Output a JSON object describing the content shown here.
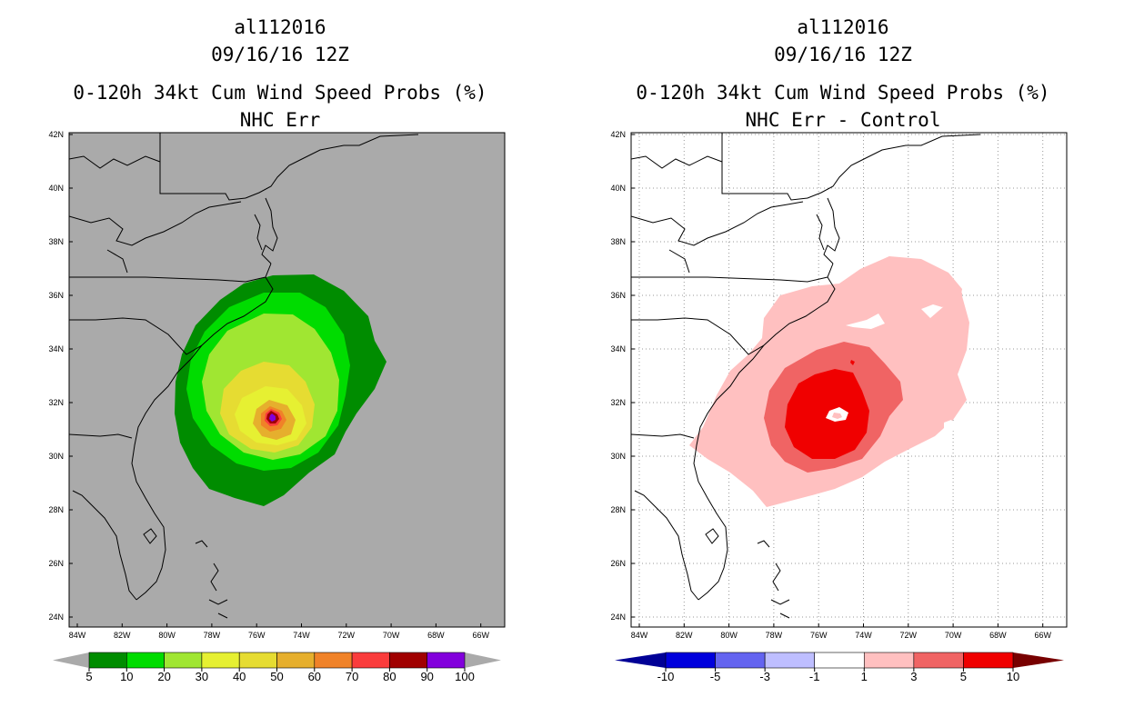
{
  "left_panel": {
    "title_line1": "al112016",
    "title_line2": "09/16/16 12Z",
    "title_line3": "0-120h 34kt Cum Wind Speed Probs (%)",
    "title_line4": "NHC Err",
    "background": "#aaaaaa",
    "colorbar": {
      "colors": [
        "#008c00",
        "#00dc00",
        "#a0e632",
        "#e6f032",
        "#e6dc32",
        "#e6af2d",
        "#f08228",
        "#fa3c3c",
        "#a00000",
        "#8200dc"
      ],
      "labels": [
        "5",
        "10",
        "20",
        "30",
        "40",
        "50",
        "60",
        "70",
        "80",
        "90",
        "100"
      ]
    }
  },
  "right_panel": {
    "title_line1": "al112016",
    "title_line2": "09/16/16 12Z",
    "title_line3": "0-120h 34kt Cum Wind Speed Probs (%)",
    "title_line4": "NHC Err - Control",
    "background": "#ffffff",
    "colorbar": {
      "colors": [
        "#0000dc",
        "#6464f0",
        "#bebeff",
        "#ffffff",
        "#ffc0c0",
        "#f06464",
        "#f00000"
      ],
      "end_left": "#000096",
      "end_right": "#780000",
      "labels": [
        "-10",
        "-5",
        "-3",
        "-1",
        "1",
        "3",
        "5",
        "10"
      ]
    }
  },
  "axes": {
    "lat_labels": [
      "42N",
      "40N",
      "38N",
      "36N",
      "34N",
      "32N",
      "30N",
      "28N",
      "26N",
      "24N"
    ],
    "lon_labels": [
      "84W",
      "82W",
      "80W",
      "78W",
      "76W",
      "74W",
      "72W",
      "70W",
      "68W",
      "66W"
    ]
  }
}
